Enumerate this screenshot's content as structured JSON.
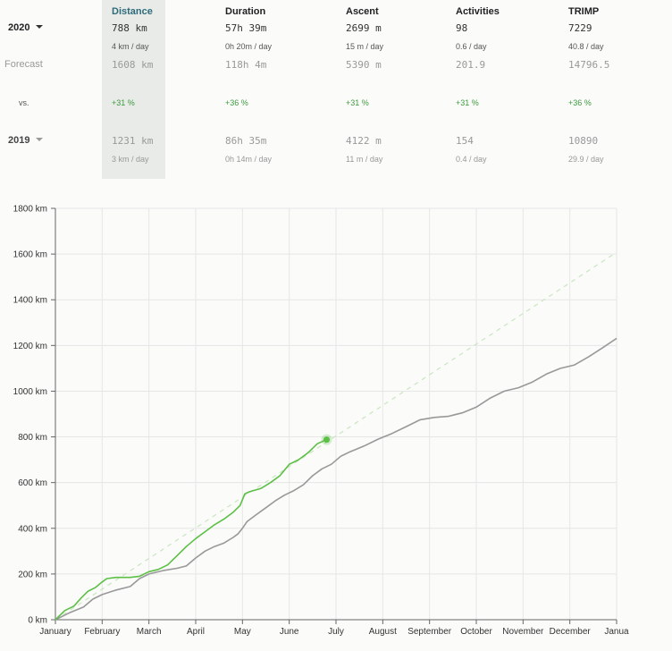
{
  "stats": {
    "columns": [
      {
        "key": "distance",
        "label": "Distance",
        "value": "788 km",
        "per_day": "4 km / day",
        "forecast": "1608 km",
        "vs": "+31 %",
        "prev_value": "1231 km",
        "prev_per_day": "3 km / day"
      },
      {
        "key": "duration",
        "label": "Duration",
        "value": "57h 39m",
        "per_day": "0h 20m / day",
        "forecast": "118h 4m",
        "vs": "+36 %",
        "prev_value": "86h 35m",
        "prev_per_day": "0h 14m / day"
      },
      {
        "key": "ascent",
        "label": "Ascent",
        "value": "2699 m",
        "per_day": "15 m / day",
        "forecast": "5390 m",
        "vs": "+31 %",
        "prev_value": "4122 m",
        "prev_per_day": "11 m / day"
      },
      {
        "key": "activities",
        "label": "Activities",
        "value": "98",
        "per_day": "0.6 / day",
        "forecast": "201.9",
        "vs": "+31 %",
        "prev_value": "154",
        "prev_per_day": "0.4 / day"
      },
      {
        "key": "trimp",
        "label": "TRIMP",
        "value": "7229",
        "per_day": "40.8 / day",
        "forecast": "14796.5",
        "vs": "+36 %",
        "prev_value": "10890",
        "prev_per_day": "29.9 / day"
      }
    ],
    "row_labels": {
      "current_year": "2020",
      "forecast": "Forecast",
      "vs": "vs.",
      "previous_year": "2019"
    },
    "active_column": "distance",
    "colors": {
      "positive": "#3d9a3d",
      "highlight_bg": "#e8ebe8",
      "active_header": "#2e6b7a"
    }
  },
  "chart_data": {
    "type": "line",
    "x_ticks": [
      "January",
      "February",
      "March",
      "April",
      "May",
      "June",
      "July",
      "August",
      "September",
      "October",
      "November",
      "December",
      "Janua"
    ],
    "y_ticks": [
      "0 km",
      "200 km",
      "400 km",
      "600 km",
      "800 km",
      "1000 km",
      "1200 km",
      "1400 km",
      "1600 km",
      "1800 km"
    ],
    "ylim": [
      0,
      1800
    ],
    "xlim": [
      0,
      12
    ],
    "x_unit": "month",
    "grid": true,
    "series": [
      {
        "id": "year-2020",
        "color": "#5cbf46",
        "points": [
          [
            0,
            0
          ],
          [
            0.2,
            40
          ],
          [
            0.4,
            60
          ],
          [
            0.55,
            95
          ],
          [
            0.7,
            125
          ],
          [
            0.85,
            140
          ],
          [
            1.0,
            165
          ],
          [
            1.1,
            180
          ],
          [
            1.3,
            185
          ],
          [
            1.6,
            185
          ],
          [
            1.8,
            190
          ],
          [
            2.0,
            210
          ],
          [
            2.2,
            220
          ],
          [
            2.4,
            240
          ],
          [
            2.6,
            280
          ],
          [
            2.8,
            320
          ],
          [
            3.0,
            355
          ],
          [
            3.2,
            385
          ],
          [
            3.4,
            415
          ],
          [
            3.6,
            440
          ],
          [
            3.8,
            470
          ],
          [
            3.95,
            500
          ],
          [
            4.05,
            550
          ],
          [
            4.15,
            560
          ],
          [
            4.4,
            575
          ],
          [
            4.6,
            600
          ],
          [
            4.8,
            630
          ],
          [
            5.0,
            680
          ],
          [
            5.2,
            700
          ],
          [
            5.4,
            730
          ],
          [
            5.6,
            770
          ],
          [
            5.8,
            788
          ]
        ],
        "end_marker": [
          5.8,
          788
        ]
      },
      {
        "id": "year-2019",
        "color": "#999999",
        "points": [
          [
            0,
            0
          ],
          [
            0.3,
            30
          ],
          [
            0.6,
            55
          ],
          [
            0.8,
            90
          ],
          [
            1.0,
            110
          ],
          [
            1.3,
            130
          ],
          [
            1.6,
            145
          ],
          [
            1.8,
            180
          ],
          [
            2.0,
            200
          ],
          [
            2.3,
            215
          ],
          [
            2.6,
            225
          ],
          [
            2.8,
            235
          ],
          [
            3.0,
            270
          ],
          [
            3.2,
            300
          ],
          [
            3.4,
            320
          ],
          [
            3.6,
            335
          ],
          [
            3.8,
            360
          ],
          [
            3.9,
            375
          ],
          [
            4.0,
            400
          ],
          [
            4.1,
            430
          ],
          [
            4.3,
            460
          ],
          [
            4.5,
            490
          ],
          [
            4.7,
            520
          ],
          [
            4.9,
            545
          ],
          [
            5.1,
            565
          ],
          [
            5.3,
            590
          ],
          [
            5.5,
            630
          ],
          [
            5.7,
            660
          ],
          [
            5.9,
            680
          ],
          [
            6.1,
            715
          ],
          [
            6.3,
            735
          ],
          [
            6.6,
            760
          ],
          [
            6.9,
            790
          ],
          [
            7.2,
            815
          ],
          [
            7.5,
            845
          ],
          [
            7.8,
            875
          ],
          [
            8.1,
            885
          ],
          [
            8.4,
            890
          ],
          [
            8.7,
            905
          ],
          [
            9.0,
            930
          ],
          [
            9.3,
            970
          ],
          [
            9.6,
            1000
          ],
          [
            9.9,
            1015
          ],
          [
            10.2,
            1040
          ],
          [
            10.5,
            1075
          ],
          [
            10.8,
            1100
          ],
          [
            11.1,
            1115
          ],
          [
            11.4,
            1150
          ],
          [
            11.7,
            1190
          ],
          [
            12.0,
            1231
          ]
        ]
      },
      {
        "id": "forecast",
        "color": "#c8e6bf",
        "dashed": true,
        "points": [
          [
            0,
            0
          ],
          [
            12,
            1608
          ]
        ]
      }
    ]
  }
}
